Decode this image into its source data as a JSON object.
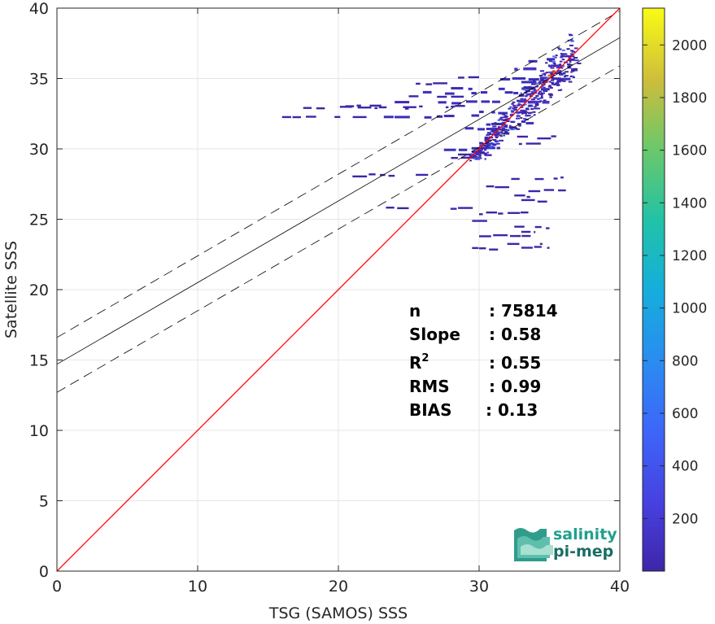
{
  "chart_data": {
    "type": "heatmap",
    "xlabel": "TSG (SAMOS) SSS",
    "ylabel": "Satellite SSS",
    "xlim": [
      0,
      40
    ],
    "ylim": [
      0,
      40
    ],
    "xticks": [
      0,
      10,
      20,
      30,
      40
    ],
    "yticks": [
      0,
      5,
      10,
      15,
      20,
      25,
      30,
      35,
      40
    ],
    "grid": true,
    "colorbar": {
      "range": [
        0,
        2140
      ],
      "ticks": [
        200,
        400,
        600,
        800,
        1000,
        1200,
        1400,
        1600,
        1800,
        2000
      ],
      "colormap": "parula",
      "placement": "right"
    },
    "lines": {
      "identity": {
        "slope": 1,
        "intercept": 0,
        "color": "#ff0000"
      },
      "regression": {
        "slope": 0.58,
        "intercept": 14.7,
        "color": "#000000"
      },
      "upper_bound": {
        "slope": 0.58,
        "intercept": 16.6,
        "style": "dashed"
      },
      "lower_bound": {
        "slope": 0.58,
        "intercept": 12.7,
        "style": "dashed"
      }
    },
    "stats": [
      {
        "label": "n",
        "value": ": 75814"
      },
      {
        "label": "Slope",
        "value": ": 0.58"
      },
      {
        "label": "R",
        "sup": "2",
        "value": ": 0.55"
      },
      {
        "label": "RMS",
        "value": ": 0.99"
      },
      {
        "label": "BIAS",
        "value": ": 0.13"
      }
    ],
    "density_segments": [
      [
        16.0,
        22.0,
        32.3,
        1
      ],
      [
        22.0,
        30.0,
        32.3,
        2
      ],
      [
        17.5,
        25.0,
        32.9,
        1
      ],
      [
        20.5,
        29.0,
        33.0,
        1
      ],
      [
        24.0,
        31.5,
        33.3,
        2
      ],
      [
        25.0,
        30.0,
        33.7,
        1
      ],
      [
        26.0,
        33.0,
        34.0,
        2
      ],
      [
        28.0,
        35.0,
        34.3,
        2
      ],
      [
        25.5,
        28.0,
        34.6,
        1
      ],
      [
        28.5,
        30.0,
        35.1,
        1
      ],
      [
        31.5,
        36.5,
        35.0,
        2
      ],
      [
        32.5,
        37.0,
        35.7,
        3
      ],
      [
        33.5,
        36.8,
        36.3,
        2
      ],
      [
        34.0,
        36.8,
        36.5,
        1
      ],
      [
        30.0,
        33.5,
        32.6,
        2
      ],
      [
        29.0,
        32.0,
        31.4,
        2
      ],
      [
        31.0,
        34.0,
        31.9,
        2
      ],
      [
        27.5,
        31.5,
        30.0,
        2
      ],
      [
        28.5,
        32.0,
        29.6,
        1
      ],
      [
        30.5,
        36.0,
        30.8,
        1
      ],
      [
        32.0,
        35.5,
        30.3,
        1
      ],
      [
        28.0,
        30.5,
        29.3,
        1
      ],
      [
        21.0,
        24.0,
        28.1,
        1
      ],
      [
        25.5,
        27.0,
        28.1,
        1
      ],
      [
        31.0,
        36.0,
        27.9,
        1
      ],
      [
        30.5,
        33.5,
        27.3,
        1
      ],
      [
        33.5,
        36.5,
        27.0,
        1
      ],
      [
        32.5,
        35.5,
        26.6,
        1
      ],
      [
        33.0,
        36.0,
        26.3,
        1
      ],
      [
        22.5,
        25.0,
        25.8,
        1
      ],
      [
        27.5,
        32.0,
        25.8,
        1
      ],
      [
        30.0,
        33.5,
        25.4,
        1
      ],
      [
        29.5,
        31.0,
        24.8,
        1
      ],
      [
        32.5,
        35.0,
        24.4,
        1
      ],
      [
        33.0,
        34.0,
        24.1,
        1
      ],
      [
        30.0,
        34.0,
        23.8,
        1
      ],
      [
        32.0,
        34.5,
        23.3,
        1
      ],
      [
        29.5,
        32.0,
        22.9,
        1
      ],
      [
        33.0,
        35.0,
        23.0,
        1
      ],
      [
        30.0,
        31.0,
        23.7,
        1
      ],
      [
        33.0,
        36.0,
        34.8,
        2
      ],
      [
        31.0,
        34.0,
        33.8,
        2
      ],
      [
        32.0,
        35.0,
        33.4,
        3
      ],
      [
        30.5,
        33.0,
        31.7,
        2
      ]
    ],
    "hot_spots": [
      [
        35.0,
        35.2,
        5
      ],
      [
        34.8,
        34.9,
        4
      ],
      [
        35.3,
        35.5,
        6
      ],
      [
        34.5,
        34.4,
        4
      ],
      [
        33.3,
        33.4,
        3
      ],
      [
        32.3,
        32.4,
        3
      ],
      [
        31.2,
        31.2,
        3
      ],
      [
        30.5,
        30.6,
        2
      ],
      [
        29.6,
        29.8,
        2
      ],
      [
        34.0,
        34.0,
        3
      ],
      [
        35.6,
        35.8,
        3
      ]
    ]
  },
  "logo": {
    "line1": "salinity",
    "line2": "pi-mep"
  }
}
